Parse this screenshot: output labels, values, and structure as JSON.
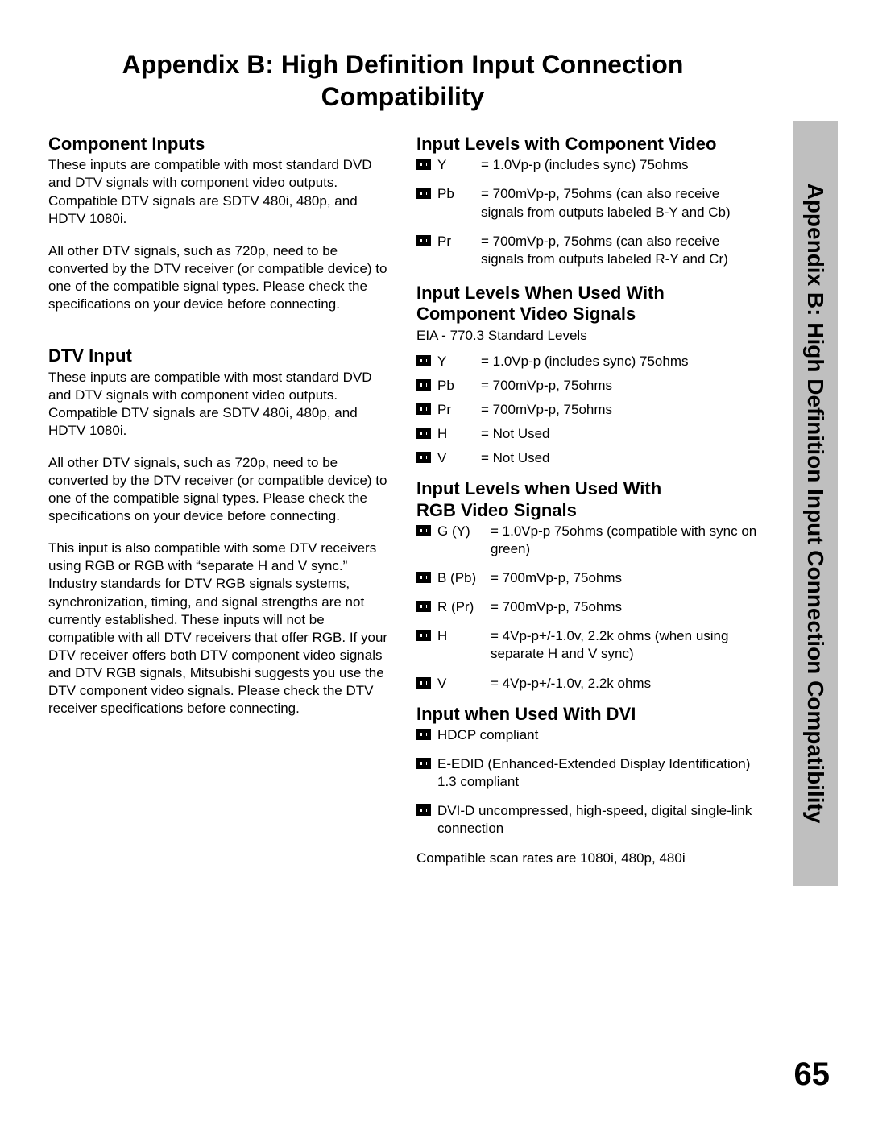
{
  "page": {
    "title_line1": "Appendix B: High Definition Input Connection",
    "title_line2": "Compatibility",
    "side_tab": "Appendix B: High Definition Input Connection Compatibility",
    "number": "65"
  },
  "left": {
    "s1_title": "Component Inputs",
    "s1_p1": "These inputs are compatible with most standard DVD and DTV signals with component video outputs.  Compatible DTV signals are SDTV 480i, 480p, and HDTV 1080i.",
    "s1_p2": "All other DTV signals, such as 720p, need to be converted by the DTV receiver (or compatible device) to one of the compatible signal types.  Please check the specifications on your device before connecting.",
    "s2_title": "DTV Input",
    "s2_p1": "These inputs are compatible with most standard DVD and DTV signals with component video outputs.  Compatible DTV signals are SDTV 480i, 480p, and HDTV 1080i.",
    "s2_p2": "All other DTV signals, such as 720p, need to be converted by the DTV receiver (or compatible device) to one of the compatible signal types.  Please check the specifications on your device before connecting.",
    "s2_p3": "This input is also compatible with some DTV receivers using RGB or RGB with “separate H and V sync.”  Industry standards for DTV RGB signals systems, synchronization, timing, and signal strengths are not currently established.  These inputs will not be compatible with all DTV receivers that offer RGB.  If your DTV receiver offers both DTV component video signals and DTV RGB signals, Mitsubishi suggests you use the DTV component video signals.  Please check the DTV receiver specifications before connecting."
  },
  "right": {
    "s1_title": "Input Levels with Component Video",
    "s1_rows": [
      {
        "label": "Y",
        "value": "= 1.0Vp-p (includes sync) 75ohms"
      },
      {
        "label": "Pb",
        "value": "= 700mVp-p, 75ohms (can also receive signals from outputs labeled B-Y and Cb)"
      },
      {
        "label": "Pr",
        "value": "= 700mVp-p, 75ohms (can also receive signals from outputs labeled R-Y and Cr)"
      }
    ],
    "s2_title_l1": "Input Levels When Used With",
    "s2_title_l2": "Component Video Signals",
    "s2_sub": "EIA - 770.3 Standard Levels",
    "s2_rows": [
      {
        "label": "Y",
        "value": "= 1.0Vp-p (includes sync) 75ohms"
      },
      {
        "label": "Pb",
        "value": "= 700mVp-p,  75ohms"
      },
      {
        "label": "Pr",
        "value": "= 700mVp-p, 75ohms"
      },
      {
        "label": "H",
        "value": "= Not Used"
      },
      {
        "label": "V",
        "value": "= Not Used"
      }
    ],
    "s3_title_l1": "Input Levels when Used With",
    "s3_title_l2": "RGB Video Signals",
    "s3_rows": [
      {
        "label": "G (Y)",
        "value": "= 1.0Vp-p 75ohms (compatible with sync on green)"
      },
      {
        "label": "B (Pb)",
        "value": "= 700mVp-p,  75ohms"
      },
      {
        "label": "R (Pr)",
        "value": "= 700mVp-p, 75ohms"
      },
      {
        "label": "H",
        "value": "= 4Vp-p+/-1.0v, 2.2k ohms (when using separate H and V sync)"
      },
      {
        "label": "V",
        "value": "= 4Vp-p+/-1.0v, 2.2k ohms"
      }
    ],
    "s4_title": "Input when Used With DVI",
    "s4_rows": [
      {
        "value": "HDCP compliant"
      },
      {
        "value": "E-EDID (Enhanced-Extended Display Identification) 1.3 compliant"
      },
      {
        "value": "DVI-D uncompressed, high-speed, digital single-link connection"
      }
    ],
    "s4_foot": "Compatible scan rates are 1080i, 480p, 480i"
  }
}
